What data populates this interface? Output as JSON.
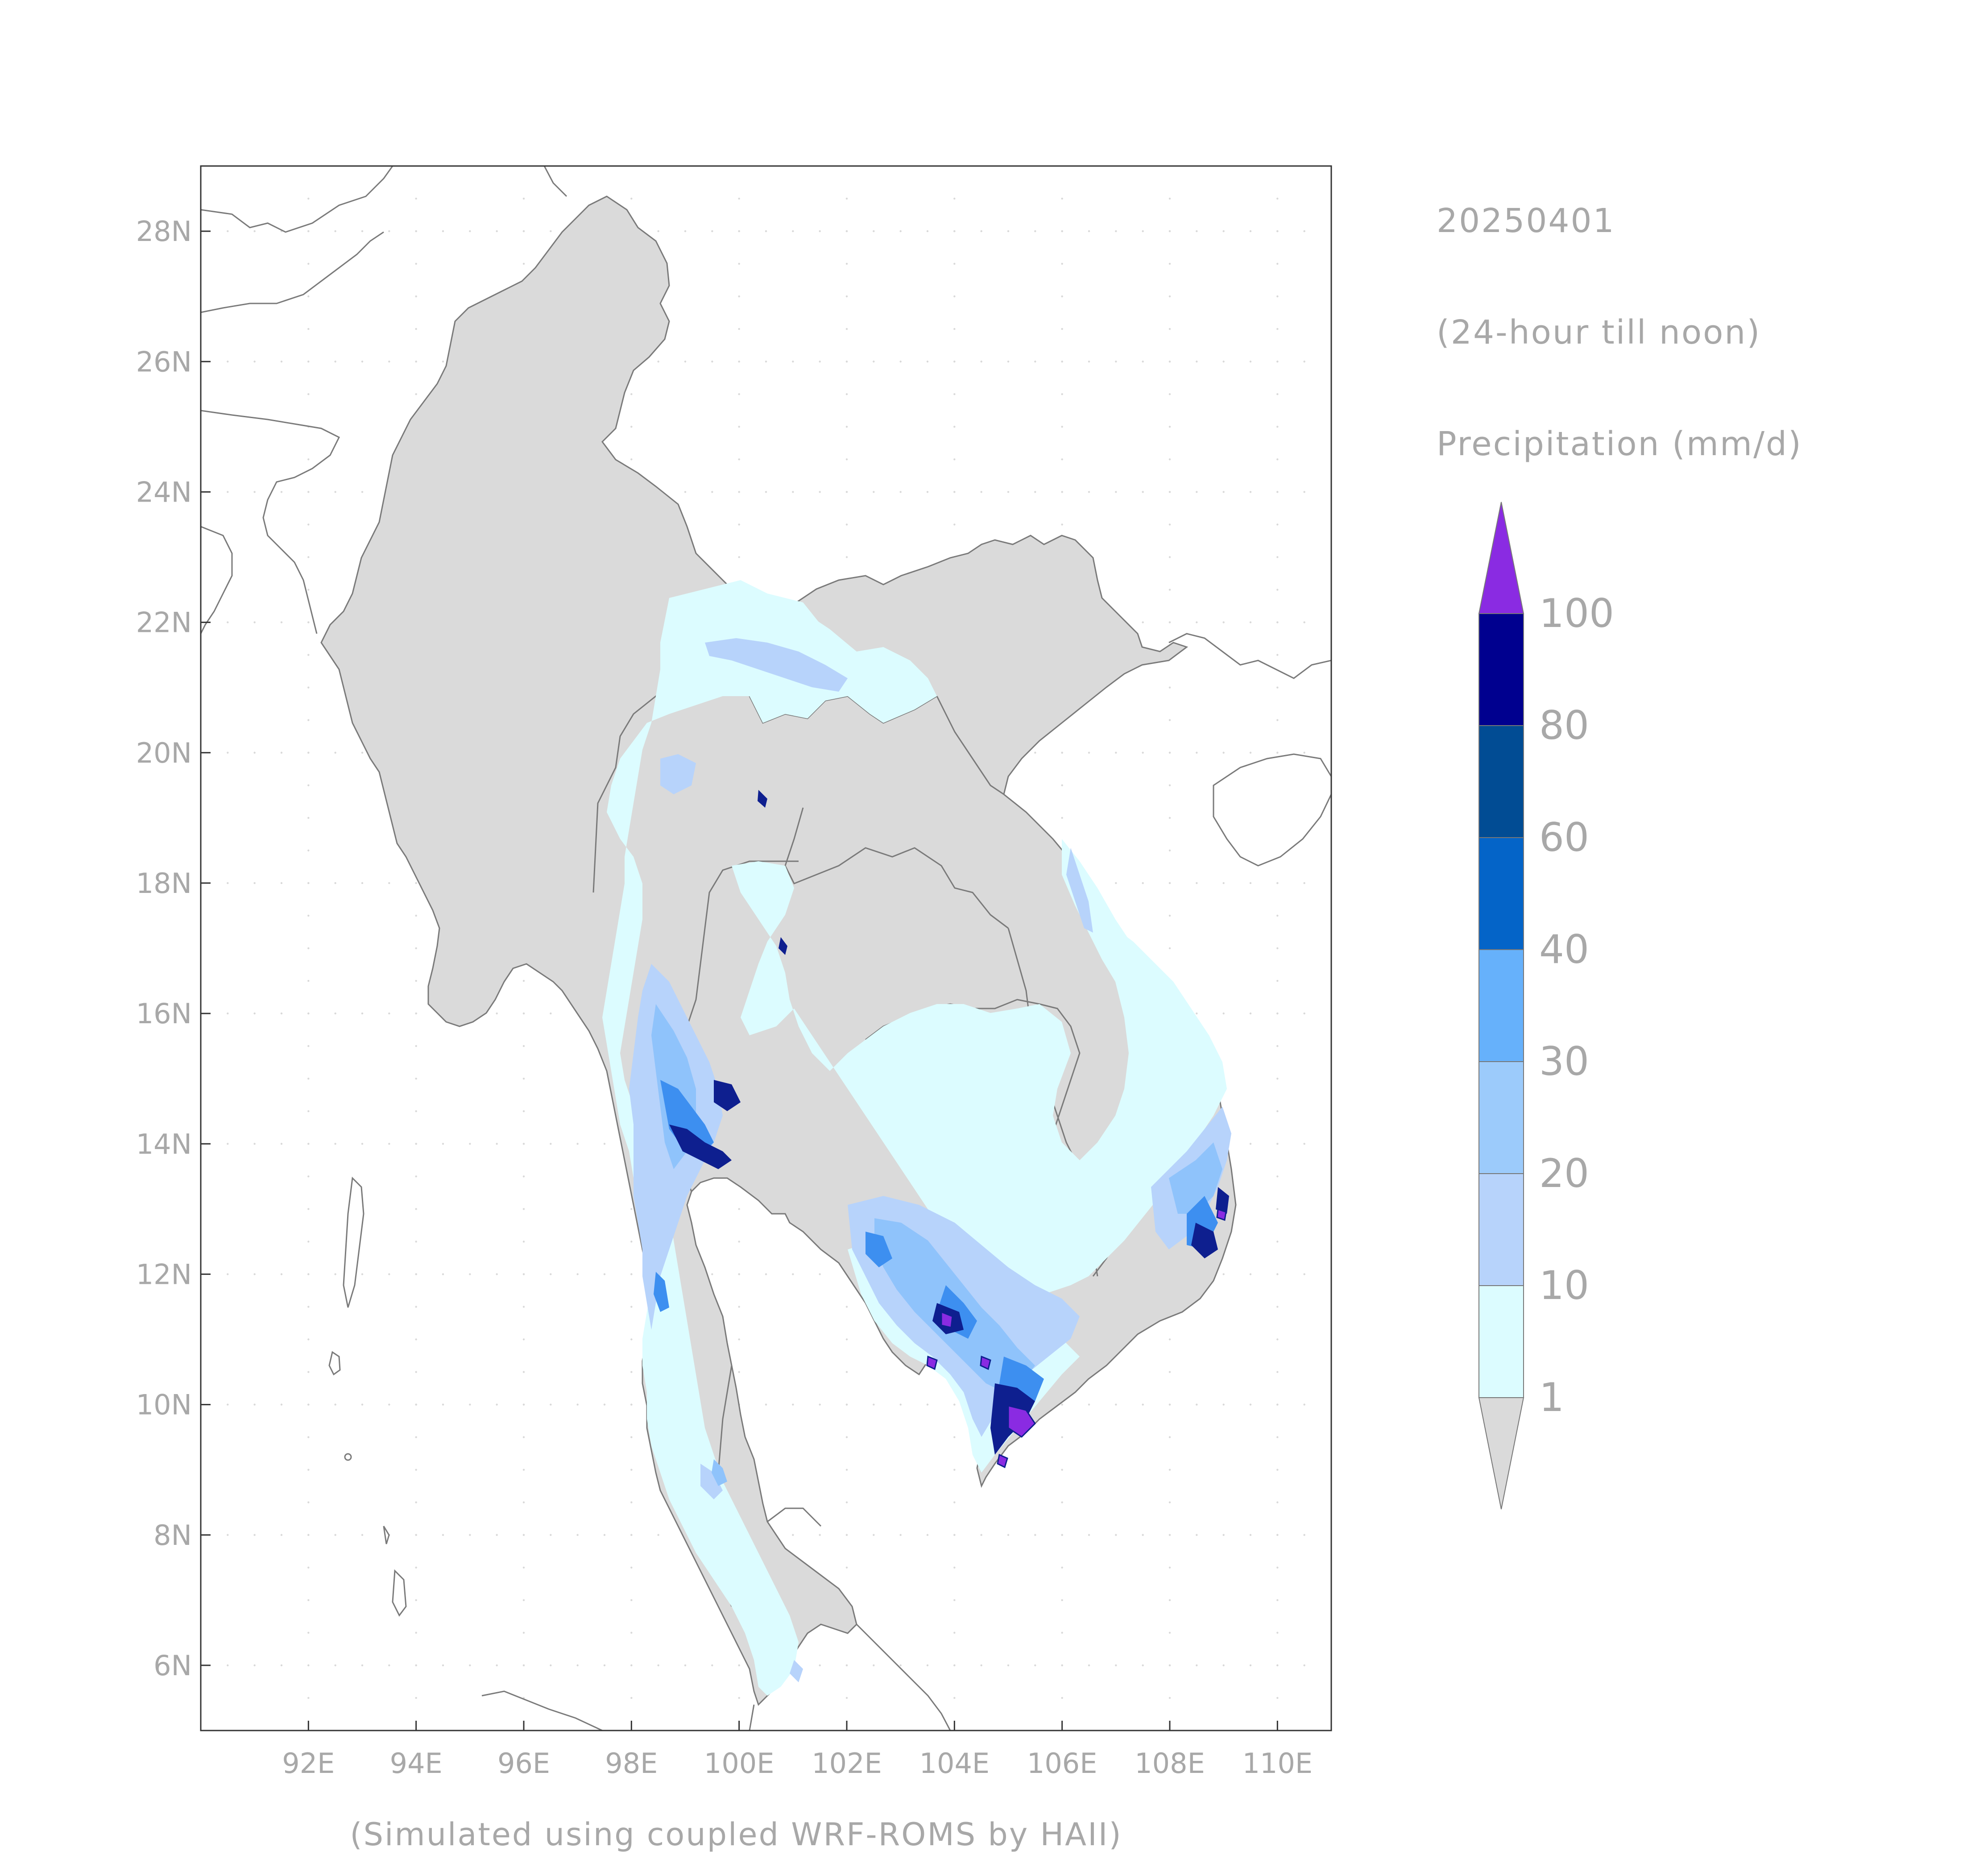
{
  "map": {
    "date": "20250401",
    "period": "(24-hour till noon)",
    "variable": "Precipitation (mm/d)",
    "credit": "(Simulated using coupled WRF-ROMS by HAII)",
    "lon_labels": [
      "92E",
      "94E",
      "96E",
      "98E",
      "100E",
      "102E",
      "104E",
      "106E",
      "108E",
      "110E"
    ],
    "lat_labels": [
      "6N",
      "8N",
      "10N",
      "12N",
      "14N",
      "16N",
      "18N",
      "20N",
      "22N",
      "24N",
      "26N",
      "28N"
    ],
    "lon_range": [
      90.0,
      111.0
    ],
    "lat_range": [
      5.0,
      29.0
    ],
    "land_color": "#dadada",
    "coast_color": "#7a7a7a"
  },
  "colorbar": {
    "levels": [
      "1",
      "10",
      "20",
      "30",
      "40",
      "60",
      "80",
      "100"
    ],
    "colors": [
      "#dadada",
      "#dcfcff",
      "#b7d3fb",
      "#9ccbfb",
      "#66b1fb",
      "#0464c8",
      "#014c94",
      "#00008f",
      "#8a2be2"
    ]
  }
}
